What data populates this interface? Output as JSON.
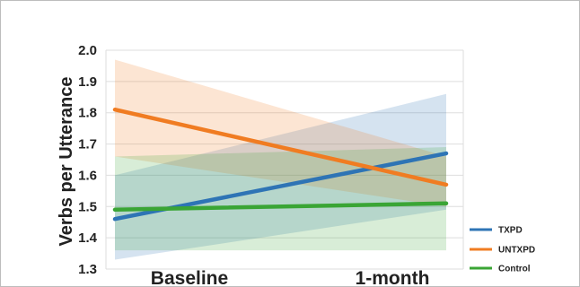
{
  "chart_data": {
    "type": "line",
    "title": "",
    "xlabel": "",
    "ylabel": "Verbs per Utterance",
    "categories": [
      "Baseline",
      "1-month"
    ],
    "ylim": [
      1.3,
      2.0
    ],
    "yticks": [
      "1.3",
      "1.4",
      "1.5",
      "1.6",
      "1.7",
      "1.8",
      "1.9",
      "2.0"
    ],
    "grid": true,
    "legend_position": "bottom-right",
    "series": [
      {
        "name": "TXPD",
        "color": "#2e74b5",
        "values": [
          1.46,
          1.67
        ],
        "lower": [
          1.33,
          1.49
        ],
        "upper": [
          1.6,
          1.86
        ]
      },
      {
        "name": "UNTXPD",
        "color": "#f07c22",
        "values": [
          1.81,
          1.57
        ],
        "lower": [
          1.66,
          1.5
        ],
        "upper": [
          1.97,
          1.66
        ]
      },
      {
        "name": "Control",
        "color": "#3aa535",
        "values": [
          1.49,
          1.51
        ],
        "lower": [
          1.36,
          1.36
        ],
        "upper": [
          1.66,
          1.69
        ]
      }
    ]
  }
}
